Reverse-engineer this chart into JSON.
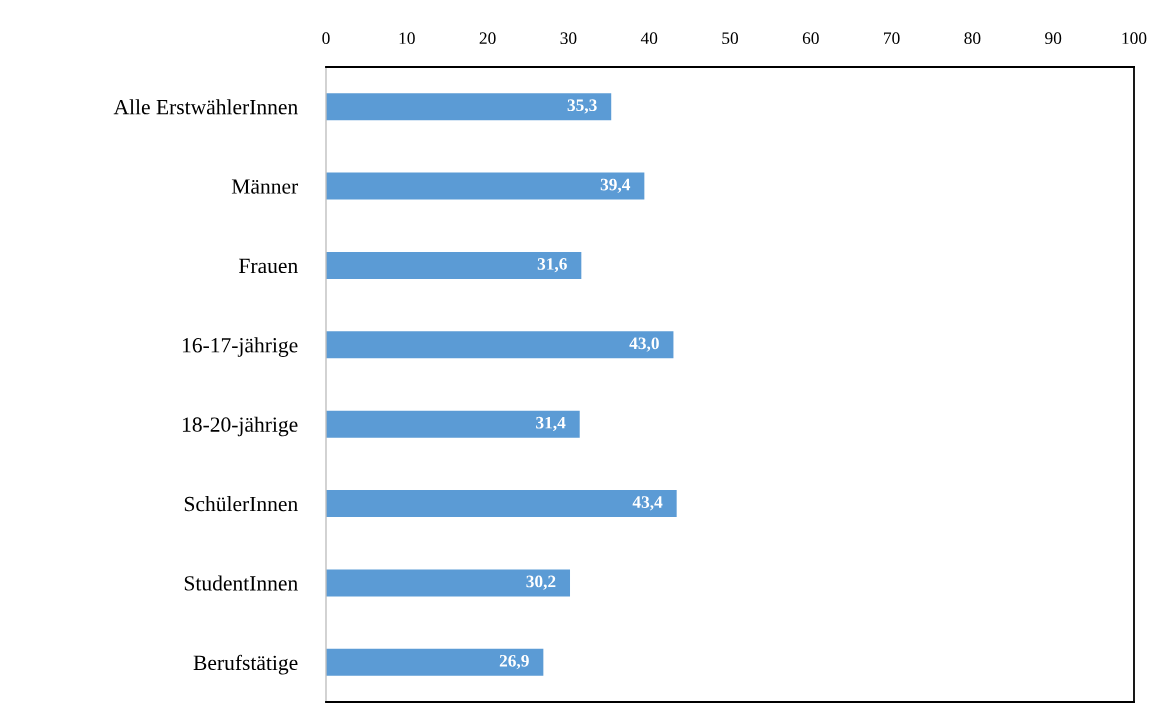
{
  "chart_data": {
    "type": "bar",
    "orientation": "horizontal",
    "categories": [
      "Alle ErstwählerInnen",
      "Männer",
      "Frauen",
      "16-17-jährige",
      "18-20-jährige",
      "SchülerInnen",
      "StudentInnen",
      "Berufstätige"
    ],
    "values": [
      35.3,
      39.4,
      31.6,
      43.0,
      31.4,
      43.4,
      30.2,
      26.9
    ],
    "value_labels": [
      "35,3",
      "39,4",
      "31,6",
      "43,0",
      "31,4",
      "43,4",
      "30,2",
      "26,9"
    ],
    "color": "#5b9bd5",
    "xlim": [
      0,
      100
    ],
    "xticks": [
      0,
      10,
      20,
      30,
      40,
      50,
      60,
      70,
      80,
      90,
      100
    ]
  }
}
